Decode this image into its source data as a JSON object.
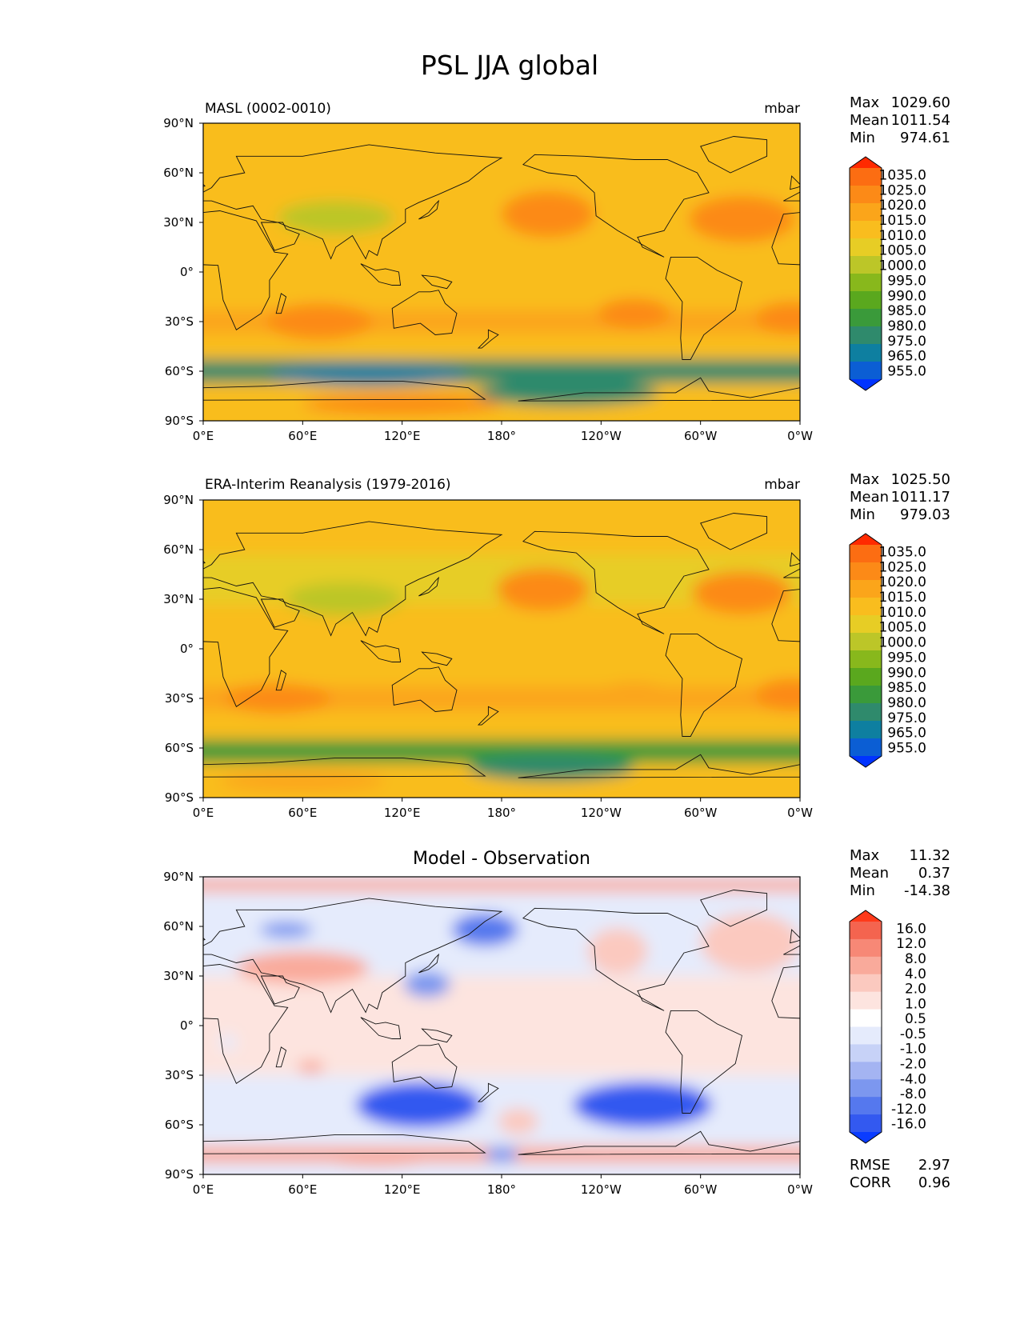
{
  "figure": {
    "title": "PSL JJA global"
  },
  "colors": {
    "seq_fill": [
      "#0033ff",
      "#0b5ed4",
      "#0e7fa0",
      "#2f8a6c",
      "#3a9a3a",
      "#5aa81e",
      "#88b81c",
      "#bcc628",
      "#e7cd25",
      "#f9bd1e",
      "#fba51a",
      "#fc8a17",
      "#fc6d12",
      "#ff2a00"
    ],
    "diff_fill": [
      "#0a3cff",
      "#3359f0",
      "#5578ee",
      "#7c97ef",
      "#a4b4f2",
      "#c7d2f7",
      "#e5ebfc",
      "#ffffff",
      "#fde4df",
      "#fbc9bf",
      "#f9aa9b",
      "#f78876",
      "#f4644f",
      "#ff3a1a"
    ]
  },
  "panels": [
    {
      "title_left": "MASL (0002-0010)",
      "title_center": "",
      "units": "mbar",
      "stats": [
        {
          "label": "Max",
          "value": "1029.60"
        },
        {
          "label": "Mean",
          "value": "1011.54"
        },
        {
          "label": "Min",
          "value": "974.61"
        }
      ],
      "colorbar_labels": [
        "1035.0",
        "1025.0",
        "1020.0",
        "1015.0",
        "1010.0",
        "1005.0",
        "1000.0",
        "995.0",
        "990.0",
        "985.0",
        "980.0",
        "975.0",
        "965.0",
        "955.0"
      ],
      "extra_stats": []
    },
    {
      "title_left": "ERA-Interim Reanalysis (1979-2016)",
      "title_center": "",
      "units": "mbar",
      "stats": [
        {
          "label": "Max",
          "value": "1025.50"
        },
        {
          "label": "Mean",
          "value": "1011.17"
        },
        {
          "label": "Min",
          "value": "979.03"
        }
      ],
      "colorbar_labels": [
        "1035.0",
        "1025.0",
        "1020.0",
        "1015.0",
        "1010.0",
        "1005.0",
        "1000.0",
        "995.0",
        "990.0",
        "985.0",
        "980.0",
        "975.0",
        "965.0",
        "955.0"
      ],
      "extra_stats": []
    },
    {
      "title_left": "",
      "title_center": "Model - Observation",
      "units": "",
      "stats": [
        {
          "label": "Max",
          "value": "11.32"
        },
        {
          "label": "Mean",
          "value": "0.37"
        },
        {
          "label": "Min",
          "value": "-14.38"
        }
      ],
      "colorbar_labels": [
        "16.0",
        "12.0",
        "8.0",
        "4.0",
        "2.0",
        "1.0",
        "0.5",
        "-0.5",
        "-1.0",
        "-2.0",
        "-4.0",
        "-8.0",
        "-12.0",
        "-16.0"
      ],
      "extra_stats": [
        {
          "label": "RMSE",
          "value": "2.97"
        },
        {
          "label": "CORR",
          "value": "0.96"
        }
      ]
    }
  ],
  "chart_data": [
    {
      "type": "heatmap",
      "title": "MASL (0002-0010)",
      "units": "mbar",
      "xlabel": "",
      "ylabel": "",
      "xlim": [
        0,
        360
      ],
      "ylim": [
        -90,
        90
      ],
      "x_ticks": [
        "0°E",
        "60°E",
        "120°E",
        "180°",
        "120°W",
        "60°W",
        "0°W"
      ],
      "y_ticks": [
        "90°N",
        "60°N",
        "30°N",
        "0°",
        "30°S",
        "60°S",
        "90°S"
      ],
      "levels": [
        955,
        965,
        975,
        980,
        985,
        990,
        995,
        1000,
        1005,
        1010,
        1015,
        1020,
        1025,
        1035
      ],
      "colormap": "seq",
      "max": 1029.6,
      "mean": 1011.54,
      "min": 974.61,
      "features": [
        {
          "kind": "band",
          "lat": -60,
          "width": 14,
          "value": 982
        },
        {
          "kind": "band",
          "lat": -30,
          "width": 14,
          "value": 1019
        },
        {
          "kind": "band",
          "lat": 40,
          "width": 28,
          "value": 1010
        },
        {
          "kind": "high",
          "lon": 208,
          "lat": 35,
          "rx": 28,
          "ry": 14,
          "value": 1024
        },
        {
          "kind": "high",
          "lon": 325,
          "lat": 32,
          "rx": 32,
          "ry": 14,
          "value": 1024
        },
        {
          "kind": "high",
          "lon": 70,
          "lat": -30,
          "rx": 32,
          "ry": 11,
          "value": 1023
        },
        {
          "kind": "high",
          "lon": 355,
          "lat": -28,
          "rx": 22,
          "ry": 10,
          "value": 1021
        },
        {
          "kind": "high",
          "lon": 260,
          "lat": -25,
          "rx": 22,
          "ry": 9,
          "value": 1020
        },
        {
          "kind": "low",
          "lon": 100,
          "lat": -62,
          "rx": 60,
          "ry": 7,
          "value": 975
        },
        {
          "kind": "low",
          "lon": 220,
          "lat": -73,
          "rx": 55,
          "ry": 8,
          "value": 983
        },
        {
          "kind": "low",
          "lon": 80,
          "lat": 33,
          "rx": 35,
          "ry": 10,
          "value": 1002
        },
        {
          "kind": "high",
          "lon": 120,
          "lat": -80,
          "rx": 60,
          "ry": 6,
          "value": 1020
        }
      ]
    },
    {
      "type": "heatmap",
      "title": "ERA-Interim Reanalysis (1979-2016)",
      "units": "mbar",
      "xlabel": "",
      "ylabel": "",
      "xlim": [
        0,
        360
      ],
      "ylim": [
        -90,
        90
      ],
      "x_ticks": [
        "0°E",
        "60°E",
        "120°E",
        "180°",
        "120°W",
        "60°W",
        "0°W"
      ],
      "y_ticks": [
        "90°N",
        "60°N",
        "30°N",
        "0°",
        "30°S",
        "60°S",
        "90°S"
      ],
      "levels": [
        955,
        965,
        975,
        980,
        985,
        990,
        995,
        1000,
        1005,
        1010,
        1015,
        1020,
        1025,
        1035
      ],
      "colormap": "seq",
      "max": 1025.5,
      "mean": 1011.17,
      "min": 979.03,
      "features": [
        {
          "kind": "band",
          "lat": -62,
          "width": 14,
          "value": 987
        },
        {
          "kind": "band",
          "lat": -30,
          "width": 14,
          "value": 1017
        },
        {
          "kind": "band",
          "lat": 42,
          "width": 30,
          "value": 1009
        },
        {
          "kind": "high",
          "lon": 205,
          "lat": 36,
          "rx": 28,
          "ry": 13,
          "value": 1021
        },
        {
          "kind": "high",
          "lon": 325,
          "lat": 34,
          "rx": 30,
          "ry": 13,
          "value": 1021
        },
        {
          "kind": "high",
          "lon": 45,
          "lat": -30,
          "rx": 32,
          "ry": 9,
          "value": 1020
        },
        {
          "kind": "high",
          "lon": 355,
          "lat": -28,
          "rx": 22,
          "ry": 10,
          "value": 1020
        },
        {
          "kind": "high",
          "lon": 260,
          "lat": -28,
          "rx": 22,
          "ry": 8,
          "value": 1019
        },
        {
          "kind": "low",
          "lon": 210,
          "lat": -72,
          "rx": 50,
          "ry": 8,
          "value": 982
        },
        {
          "kind": "low",
          "lon": 85,
          "lat": 30,
          "rx": 35,
          "ry": 10,
          "value": 1002
        },
        {
          "kind": "high",
          "lon": 60,
          "lat": -80,
          "rx": 50,
          "ry": 6,
          "value": 1016
        }
      ]
    },
    {
      "type": "heatmap",
      "title": "Model - Observation",
      "units": "",
      "xlabel": "",
      "ylabel": "",
      "xlim": [
        0,
        360
      ],
      "ylim": [
        -90,
        90
      ],
      "x_ticks": [
        "0°E",
        "60°E",
        "120°E",
        "180°",
        "120°W",
        "60°W",
        "0°W"
      ],
      "y_ticks": [
        "90°N",
        "60°N",
        "30°N",
        "0°",
        "30°S",
        "60°S",
        "90°S"
      ],
      "levels": [
        -16,
        -12,
        -8,
        -4,
        -2,
        -1,
        -0.5,
        0.5,
        1,
        2,
        4,
        8,
        12,
        16
      ],
      "colormap": "diff",
      "max": 11.32,
      "mean": 0.37,
      "min": -14.38,
      "rmse": 2.97,
      "corr": 0.96,
      "features": [
        {
          "kind": "band",
          "lat": 0,
          "width": 60,
          "value": 1.5
        },
        {
          "kind": "band",
          "lat": 85,
          "width": 8,
          "value": 4.5
        },
        {
          "kind": "band",
          "lat": -78,
          "width": 10,
          "value": 4.5
        },
        {
          "kind": "low",
          "lon": 130,
          "lat": -48,
          "rx": 38,
          "ry": 14,
          "value": -11
        },
        {
          "kind": "low",
          "lon": 265,
          "lat": -48,
          "rx": 42,
          "ry": 14,
          "value": -9
        },
        {
          "kind": "low",
          "lon": 170,
          "lat": 58,
          "rx": 20,
          "ry": 10,
          "value": -6
        },
        {
          "kind": "low",
          "lon": 135,
          "lat": 25,
          "rx": 14,
          "ry": 8,
          "value": -4
        },
        {
          "kind": "low",
          "lon": 50,
          "lat": 58,
          "rx": 16,
          "ry": 5,
          "value": -3
        },
        {
          "kind": "low",
          "lon": 180,
          "lat": -78,
          "rx": 10,
          "ry": 5,
          "value": -3
        },
        {
          "kind": "high",
          "lon": 60,
          "lat": 35,
          "rx": 40,
          "ry": 10,
          "value": 4.5
        },
        {
          "kind": "high",
          "lon": 190,
          "lat": -58,
          "rx": 12,
          "ry": 8,
          "value": 3
        },
        {
          "kind": "high",
          "lon": 250,
          "lat": 45,
          "rx": 18,
          "ry": 14,
          "value": 3
        },
        {
          "kind": "high",
          "lon": 330,
          "lat": 50,
          "rx": 30,
          "ry": 18,
          "value": 3
        },
        {
          "kind": "high",
          "lon": 65,
          "lat": -25,
          "rx": 8,
          "ry": 4,
          "value": 4.5
        },
        {
          "kind": "high",
          "lon": 105,
          "lat": -80,
          "rx": 35,
          "ry": 5,
          "value": 6
        },
        {
          "kind": "low",
          "lon": 15,
          "lat": -10,
          "rx": 5,
          "ry": 5,
          "value": 0
        }
      ]
    }
  ]
}
